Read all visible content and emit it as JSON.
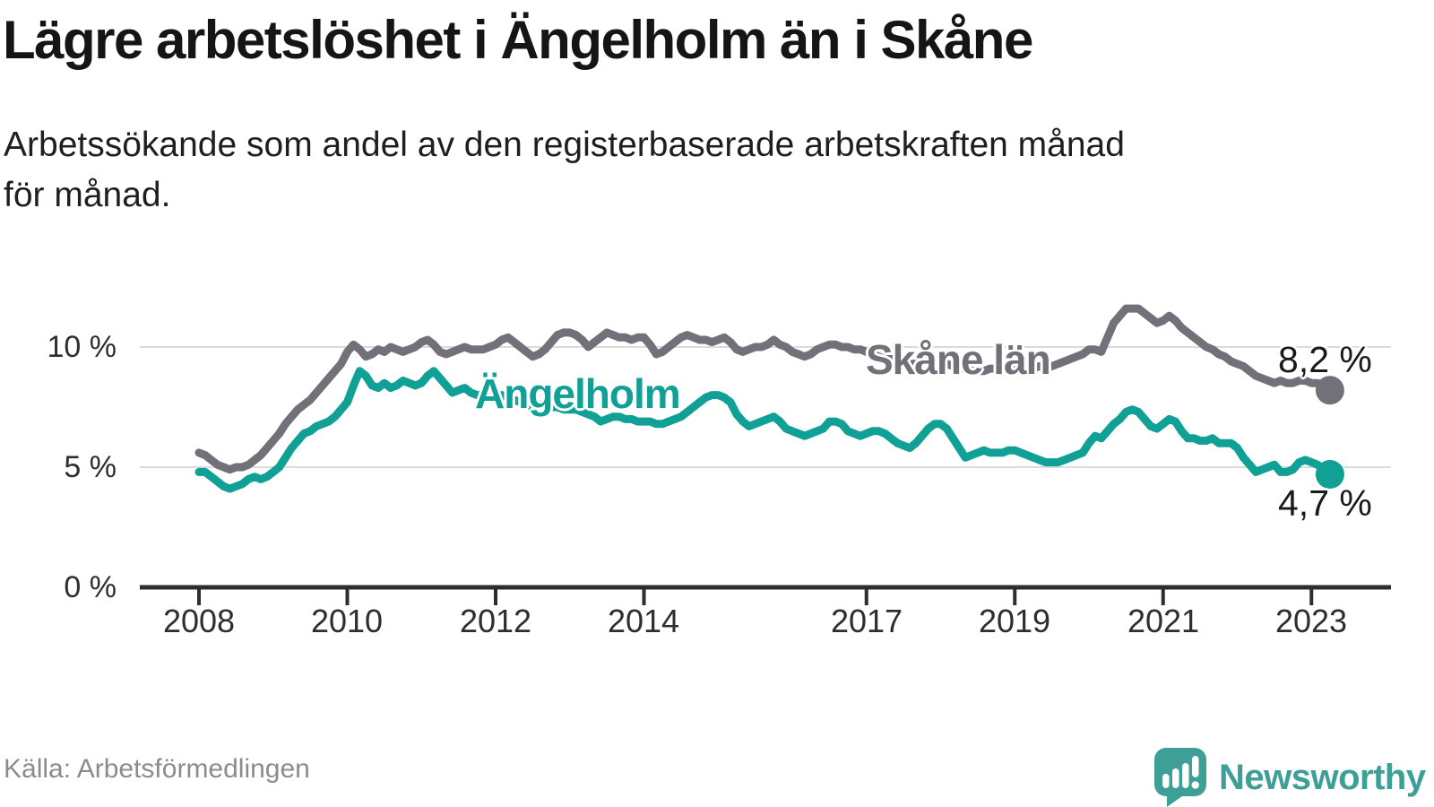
{
  "header": {
    "title": "Lägre arbetslöshet i Ängelholm än i Skåne",
    "subtitle_lines": [
      "Arbetssökande som andel av den registerbaserade arbetskraften månad",
      "för månad."
    ]
  },
  "chart_data": {
    "type": "line",
    "title": "Lägre arbetslöshet i Ängelholm än i Skåne",
    "subtitle": "Arbetssökande som andel av den registerbaserade arbetskraften månad för månad.",
    "unit": "percent",
    "frequency": "monthly",
    "x_start": "2008-01",
    "x_end": "2023-04",
    "x_start_year": 2008,
    "grid": true,
    "ylim": [
      0,
      12
    ],
    "x_ticks": [
      {
        "year": 2008,
        "label": "2008"
      },
      {
        "year": 2010,
        "label": "2010"
      },
      {
        "year": 2012,
        "label": "2012"
      },
      {
        "year": 2014,
        "label": "2014"
      },
      {
        "year": 2017,
        "label": "2017"
      },
      {
        "year": 2019,
        "label": "2019"
      },
      {
        "year": 2021,
        "label": "2021"
      },
      {
        "year": 2023,
        "label": "2023"
      }
    ],
    "y_ticks": [
      {
        "value": 0,
        "label": "0 %"
      },
      {
        "value": 5,
        "label": "5 %"
      },
      {
        "value": 10,
        "label": "10 %"
      }
    ],
    "series": [
      {
        "name": "Skåne län",
        "color": "#727179",
        "end_label": "8,2 %",
        "final_value": 8.2,
        "values": [
          5.6,
          5.5,
          5.3,
          5.1,
          5.0,
          4.9,
          5.0,
          5.0,
          5.1,
          5.3,
          5.5,
          5.8,
          6.1,
          6.4,
          6.8,
          7.1,
          7.4,
          7.6,
          7.8,
          8.1,
          8.4,
          8.7,
          9.0,
          9.3,
          9.8,
          10.1,
          9.9,
          9.6,
          9.7,
          9.9,
          9.8,
          10.0,
          9.9,
          9.8,
          9.9,
          10.0,
          10.2,
          10.3,
          10.1,
          9.8,
          9.7,
          9.8,
          9.9,
          10.0,
          9.9,
          9.9,
          9.9,
          10.0,
          10.1,
          10.3,
          10.4,
          10.2,
          10.0,
          9.8,
          9.6,
          9.7,
          9.9,
          10.2,
          10.5,
          10.6,
          10.6,
          10.5,
          10.3,
          10.0,
          10.2,
          10.4,
          10.6,
          10.5,
          10.4,
          10.4,
          10.3,
          10.4,
          10.4,
          10.1,
          9.7,
          9.8,
          10.0,
          10.2,
          10.4,
          10.5,
          10.4,
          10.3,
          10.3,
          10.2,
          10.3,
          10.4,
          10.2,
          9.9,
          9.8,
          9.9,
          10.0,
          10.0,
          10.1,
          10.3,
          10.1,
          10.0,
          9.8,
          9.7,
          9.6,
          9.7,
          9.9,
          10.0,
          10.1,
          10.1,
          10.0,
          10.0,
          9.9,
          9.9,
          9.8,
          9.7,
          9.6,
          9.5,
          9.5,
          9.4,
          9.4,
          9.3,
          9.3,
          9.4,
          9.4,
          9.4,
          9.4,
          9.3,
          9.2,
          9.1,
          9.1,
          9.0,
          9.0,
          9.0,
          9.1,
          9.1,
          9.1,
          9.2,
          9.1,
          9.1,
          9.1,
          9.1,
          9.2,
          9.2,
          9.2,
          9.3,
          9.4,
          9.5,
          9.6,
          9.7,
          9.9,
          9.9,
          9.8,
          10.4,
          11.0,
          11.3,
          11.6,
          11.6,
          11.6,
          11.4,
          11.2,
          11.0,
          11.1,
          11.3,
          11.1,
          10.8,
          10.6,
          10.4,
          10.2,
          10.0,
          9.9,
          9.7,
          9.6,
          9.4,
          9.3,
          9.2,
          9.0,
          8.8,
          8.7,
          8.6,
          8.5,
          8.6,
          8.5,
          8.5,
          8.6,
          8.6,
          8.5,
          8.5,
          8.4,
          8.2
        ]
      },
      {
        "name": "Ängelholm",
        "color": "#10a096",
        "end_label": "4,7 %",
        "final_value": 4.7,
        "values": [
          4.8,
          4.8,
          4.6,
          4.4,
          4.2,
          4.1,
          4.2,
          4.3,
          4.5,
          4.6,
          4.5,
          4.6,
          4.8,
          5.0,
          5.4,
          5.8,
          6.1,
          6.4,
          6.5,
          6.7,
          6.8,
          6.9,
          7.1,
          7.4,
          7.7,
          8.4,
          9.0,
          8.8,
          8.4,
          8.3,
          8.5,
          8.3,
          8.4,
          8.6,
          8.5,
          8.4,
          8.5,
          8.8,
          9.0,
          8.7,
          8.4,
          8.1,
          8.2,
          8.3,
          8.1,
          8.0,
          8.0,
          7.9,
          7.9,
          8.0,
          7.9,
          7.8,
          7.7,
          7.6,
          7.5,
          7.6,
          7.6,
          7.5,
          7.5,
          7.4,
          7.4,
          7.4,
          7.3,
          7.2,
          7.1,
          6.9,
          7.0,
          7.1,
          7.1,
          7.0,
          7.0,
          6.9,
          6.9,
          6.9,
          6.8,
          6.8,
          6.9,
          7.0,
          7.1,
          7.3,
          7.5,
          7.7,
          7.9,
          8.0,
          8.0,
          7.9,
          7.7,
          7.2,
          6.9,
          6.7,
          6.8,
          6.9,
          7.0,
          7.1,
          6.9,
          6.6,
          6.5,
          6.4,
          6.3,
          6.4,
          6.5,
          6.6,
          6.9,
          6.9,
          6.8,
          6.5,
          6.4,
          6.3,
          6.4,
          6.5,
          6.5,
          6.4,
          6.2,
          6.0,
          5.9,
          5.8,
          6.0,
          6.3,
          6.6,
          6.8,
          6.8,
          6.6,
          6.2,
          5.8,
          5.4,
          5.5,
          5.6,
          5.7,
          5.6,
          5.6,
          5.6,
          5.7,
          5.7,
          5.6,
          5.5,
          5.4,
          5.3,
          5.2,
          5.2,
          5.2,
          5.3,
          5.4,
          5.5,
          5.6,
          6.0,
          6.3,
          6.2,
          6.5,
          6.8,
          7.0,
          7.3,
          7.4,
          7.3,
          7.0,
          6.7,
          6.6,
          6.8,
          7.0,
          6.9,
          6.5,
          6.2,
          6.2,
          6.1,
          6.1,
          6.2,
          6.0,
          6.0,
          6.0,
          5.8,
          5.4,
          5.1,
          4.8,
          4.9,
          5.0,
          5.1,
          4.8,
          4.8,
          4.9,
          5.2,
          5.3,
          5.2,
          5.1,
          4.9,
          4.7
        ]
      }
    ]
  },
  "footer": {
    "source": "Källa: Arbetsförmedlingen",
    "brand": "Newsworthy"
  },
  "colors": {
    "teal_line": "#10a096",
    "gray_line": "#727179",
    "gridline": "#dbdbdb",
    "axis": "#2e2e2e",
    "text_dark": "#151515",
    "source_gray": "#8c8c8c",
    "brand_teal": "#3d9f96"
  }
}
